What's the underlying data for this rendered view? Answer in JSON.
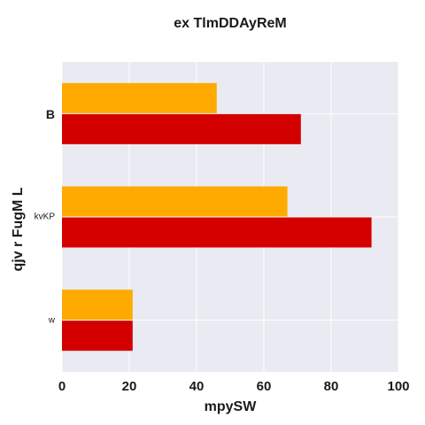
{
  "chart_data": {
    "type": "bar",
    "orientation": "horizontal",
    "title": "ex TlmDDAyReM",
    "xlabel": "mpySW",
    "ylabel": "qjv r FugM L",
    "categories": [
      "B",
      "kvKP",
      "w"
    ],
    "series": [
      {
        "color": "#ffaa00",
        "values": [
          46,
          67,
          21
        ]
      },
      {
        "color": "#d40000",
        "values": [
          71,
          92,
          21
        ]
      }
    ],
    "xlim": [
      0,
      100
    ],
    "xticks": [
      0,
      20,
      40,
      60,
      80,
      100
    ],
    "grid": true,
    "legend": "none",
    "background": "#eaeaf2"
  }
}
